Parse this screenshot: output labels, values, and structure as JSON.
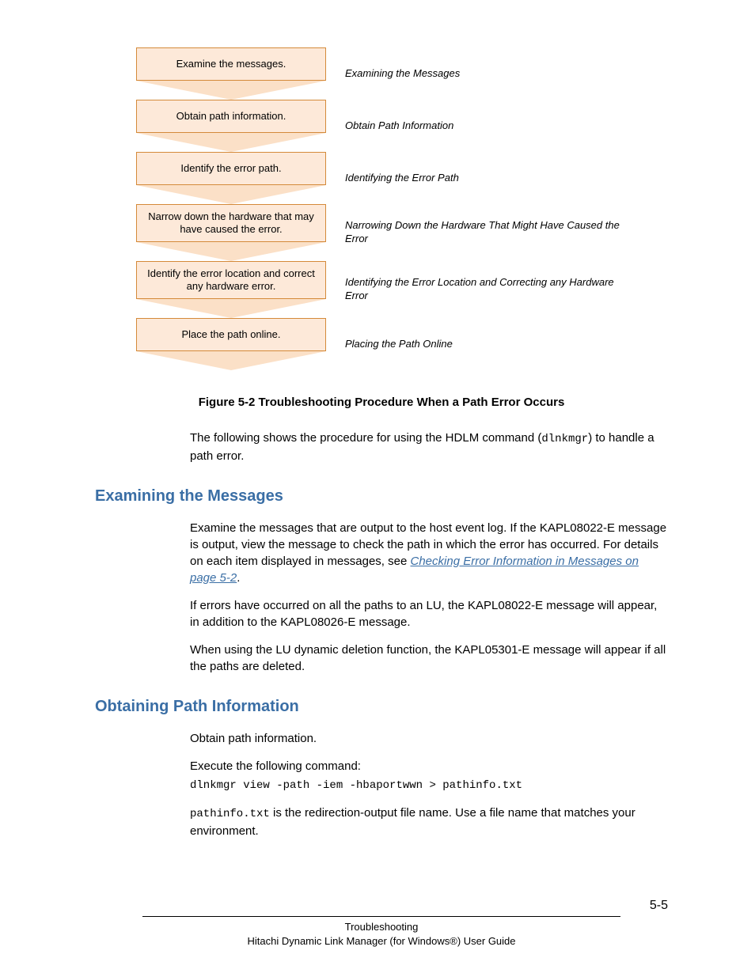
{
  "flowchart": {
    "box_fill": "#fde9d9",
    "box_border": "#d48a3a",
    "arrow_fill": "#fbe0c7",
    "steps": [
      {
        "box": "Examine the messages.",
        "label": "Examining the Messages",
        "tall": false
      },
      {
        "box": "Obtain path information.",
        "label": "Obtain Path Information",
        "tall": false
      },
      {
        "box": "Identify the error path.",
        "label": "Identifying the Error Path",
        "tall": false
      },
      {
        "box": "Narrow down the hardware that may have caused the error.",
        "label": "Narrowing Down the Hardware That Might Have Caused the Error",
        "tall": true
      },
      {
        "box": "Identify the error location and correct any hardware error.",
        "label": "Identifying the Error Location and Correcting any Hardware Error",
        "tall": true
      },
      {
        "box": "Place the path online.",
        "label": "Placing the Path Online",
        "tall": false
      }
    ]
  },
  "figure_caption": "Figure 5-2 Troubleshooting Procedure When a Path Error Occurs",
  "intro": {
    "pre": "The following shows the procedure for using the HDLM command (",
    "code": "dlnkmgr",
    "post": ") to handle a path error."
  },
  "sections": {
    "examining": {
      "heading": "Examining the Messages",
      "heading_color": "#3a6ea5",
      "p1_pre": "Examine the messages that are output to the host event log. If the KAPL08022-E message is output, view the message to check the path in which the error has occurred. For details on each item displayed in messages, see ",
      "p1_link": "Checking Error Information in Messages on page 5-2",
      "p1_link_color": "#3a6ea5",
      "p1_post": ".",
      "p2": "If errors have occurred on all the paths to an LU, the KAPL08022-E message will appear, in addition to the KAPL08026-E message.",
      "p3": "When using the LU dynamic deletion function, the KAPL05301-E message will appear if all the paths are deleted."
    },
    "obtaining": {
      "heading": "Obtaining Path Information",
      "heading_color": "#3a6ea5",
      "p1": "Obtain path information.",
      "p2": "Execute the following command:",
      "cmd": "dlnkmgr view -path -iem -hbaportwwn > pathinfo.txt",
      "p3_code": "pathinfo.txt",
      "p3_rest": " is the redirection-output file name. Use a file name that matches your environment."
    }
  },
  "footer": {
    "line1": "Troubleshooting",
    "line2": "Hitachi Dynamic Link Manager (for Windows®) User Guide",
    "page": "5-5"
  }
}
